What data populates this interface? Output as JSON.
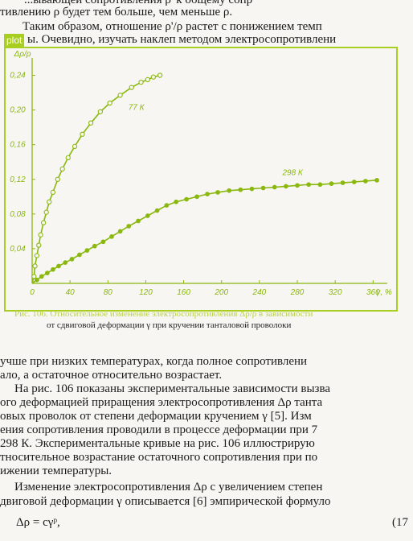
{
  "body_text": {
    "line_top_a": "...ывающей сопротивления ρ' к общему сопр",
    "line_top_b": "тивлению ρ будет тем больше, чем меньше ρ.",
    "line_top_c": "Таким образом, отношение ρ'/ρ растет с понижением темп",
    "line_top_d": "ы. Очевидно, изучать наклеп методом электросопротивлени",
    "line_1": "учше при низких температурах, когда полное сопротивлени",
    "line_2": "ало, а остаточное относительно возрастает.",
    "line_3": "На рис. 106 показаны экспериментальные зависимости вызва",
    "line_4": "ого деформацией приращения электросопротивления Δρ танта",
    "line_5": "овых проволок от степени деформации кручением γ [5]. Изм",
    "line_6": "ения сопротивления проводили в процессе деформации при 7",
    "line_7": "298 К. Экспериментальные кривые на рис. 106 иллюстрирую",
    "line_8": "тносительное возрастание остаточного сопротивления при по",
    "line_9": "ижении температуры.",
    "line_10": "Изменение электросопротивления Δρ с увеличением степен",
    "line_11": "двиговой деформации γ описывается [6] эмпирической формуло",
    "formula": "Δρ = cγᵖ,",
    "formula_number": "(17"
  },
  "plot_tag": "plot",
  "caption": {
    "line1": "Рис. 106. Относительное изменение электросопротивления Δρ/ρ в зависимости",
    "line2": "от сдвиговой деформации γ при кручении танталовой проволоки"
  },
  "chart_data": {
    "type": "scatter",
    "ylabel": "Δρ/ρ",
    "xlabel": "γ, %",
    "xlim": [
      0,
      375
    ],
    "ylim": [
      0,
      0.26
    ],
    "xticks": [
      "0",
      "40",
      "80",
      "120",
      "160",
      "200",
      "240",
      "280",
      "320",
      "360"
    ],
    "yticks": [
      "0,04",
      "0,08",
      "0,12",
      "0,16",
      "0,20",
      "0,24"
    ],
    "series": [
      {
        "name": "77 К",
        "marker": "open-circle",
        "x": [
          2,
          3,
          5,
          7,
          9,
          12,
          15,
          18,
          22,
          27,
          32,
          38,
          45,
          53,
          62,
          72,
          82,
          93,
          105,
          115,
          122,
          128,
          135
        ],
        "y": [
          0.008,
          0.02,
          0.032,
          0.044,
          0.056,
          0.07,
          0.082,
          0.094,
          0.105,
          0.12,
          0.132,
          0.145,
          0.158,
          0.172,
          0.185,
          0.198,
          0.208,
          0.217,
          0.226,
          0.232,
          0.235,
          0.238,
          0.24
        ]
      },
      {
        "name": "298 К",
        "marker": "filled-circle",
        "x": [
          5,
          10,
          16,
          22,
          28,
          35,
          42,
          50,
          58,
          66,
          75,
          84,
          93,
          102,
          112,
          122,
          132,
          142,
          152,
          163,
          174,
          185,
          196,
          208,
          220,
          232,
          244,
          256,
          268,
          280,
          292,
          304,
          316,
          328,
          340,
          352,
          364
        ],
        "y": [
          0.004,
          0.008,
          0.012,
          0.016,
          0.02,
          0.024,
          0.028,
          0.033,
          0.038,
          0.043,
          0.048,
          0.054,
          0.06,
          0.066,
          0.072,
          0.078,
          0.084,
          0.09,
          0.094,
          0.097,
          0.1,
          0.103,
          0.105,
          0.107,
          0.108,
          0.109,
          0.11,
          0.111,
          0.112,
          0.113,
          0.114,
          0.114,
          0.115,
          0.116,
          0.117,
          0.118,
          0.119
        ]
      }
    ],
    "annotations": [
      "77 К",
      "298 К"
    ],
    "color": "#8ab80e"
  }
}
